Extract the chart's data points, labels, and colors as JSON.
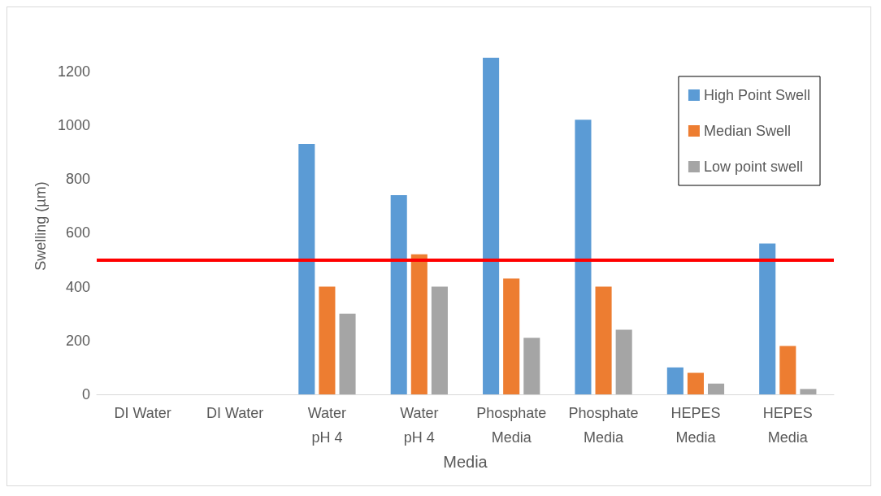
{
  "chart_data": {
    "type": "bar",
    "xlabel": "Media",
    "ylabel": "Swelling (µm)",
    "categories": [
      "DI Water",
      "DI Water",
      "Water\npH 4",
      "Water\npH 4",
      "Phosphate\nMedia",
      "Phosphate\nMedia",
      "HEPES\nMedia",
      "HEPES\nMedia"
    ],
    "series": [
      {
        "name": "High Point Swell",
        "color": "#5b9bd5",
        "values": [
          0,
          0,
          930,
          740,
          1250,
          1020,
          100,
          560
        ]
      },
      {
        "name": "Median Swell",
        "color": "#ed7d31",
        "values": [
          0,
          0,
          400,
          520,
          430,
          400,
          80,
          180
        ]
      },
      {
        "name": "Low point swell",
        "color": "#a5a5a5",
        "values": [
          0,
          0,
          300,
          400,
          210,
          240,
          40,
          20
        ]
      }
    ],
    "ylim": [
      0,
      1250
    ],
    "yticks": [
      0,
      200,
      400,
      600,
      800,
      1000,
      1200
    ],
    "ref_lines": [
      {
        "axis": "y",
        "value": 500,
        "color": "#ff0000"
      }
    ],
    "grid": false,
    "legend": "top right"
  }
}
